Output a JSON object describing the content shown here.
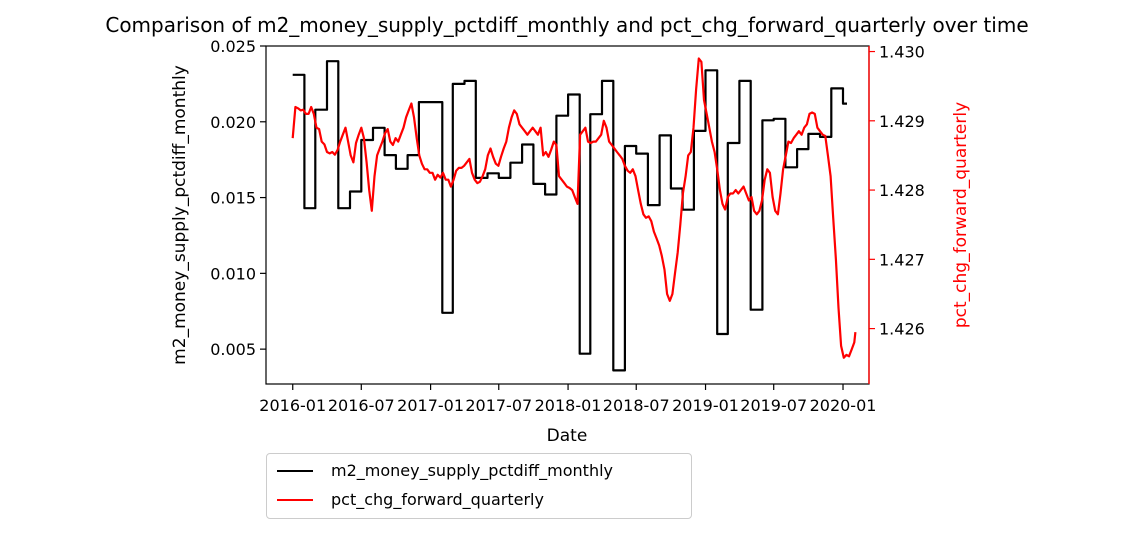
{
  "chart_data": {
    "type": "line",
    "title": "Comparison of m2_money_supply_pctdiff_monthly and pct_chg_forward_quarterly over time",
    "xlabel": "Date",
    "ylabel_left": "m2_money_supply_pctdiff_monthly",
    "ylabel_right": "pct_chg_forward_quarterly",
    "x_ticks": [
      "2016-01",
      "2016-07",
      "2017-01",
      "2017-07",
      "2018-01",
      "2018-07",
      "2019-01",
      "2019-07",
      "2020-01"
    ],
    "x_range": [
      "2015-10-22",
      "2020-03-10"
    ],
    "ylim_left": [
      0.0027,
      0.025
    ],
    "ylim_right": [
      1.4252,
      1.43008
    ],
    "y_ticks_left": [
      "0.005",
      "0.010",
      "0.015",
      "0.020",
      "0.025"
    ],
    "y_ticks_right": [
      "1.426",
      "1.427",
      "1.428",
      "1.429",
      "1.430"
    ],
    "grid": false,
    "legend_position": "below",
    "series": [
      {
        "name": "m2_money_supply_pctdiff_monthly",
        "axis": "left",
        "color": "#000000",
        "style": "step",
        "points": [
          [
            "2016-01-01",
            0.0231
          ],
          [
            "2016-02-01",
            0.0143
          ],
          [
            "2016-03-01",
            0.0208
          ],
          [
            "2016-04-01",
            0.024
          ],
          [
            "2016-05-01",
            0.0143
          ],
          [
            "2016-06-01",
            0.0154
          ],
          [
            "2016-07-01",
            0.0188
          ],
          [
            "2016-08-01",
            0.0196
          ],
          [
            "2016-09-01",
            0.0178
          ],
          [
            "2016-10-01",
            0.0169
          ],
          [
            "2016-11-01",
            0.0178
          ],
          [
            "2016-12-01",
            0.0213
          ],
          [
            "2017-01-01",
            0.0213
          ],
          [
            "2017-02-01",
            0.0074
          ],
          [
            "2017-03-01",
            0.0225
          ],
          [
            "2017-04-01",
            0.0227
          ],
          [
            "2017-05-01",
            0.0163
          ],
          [
            "2017-06-01",
            0.0166
          ],
          [
            "2017-07-01",
            0.0163
          ],
          [
            "2017-08-01",
            0.0173
          ],
          [
            "2017-09-01",
            0.0185
          ],
          [
            "2017-10-01",
            0.0159
          ],
          [
            "2017-11-01",
            0.0152
          ],
          [
            "2017-12-01",
            0.0204
          ],
          [
            "2018-01-01",
            0.0218
          ],
          [
            "2018-02-01",
            0.0047
          ],
          [
            "2018-03-01",
            0.0205
          ],
          [
            "2018-04-01",
            0.0227
          ],
          [
            "2018-05-01",
            0.0036
          ],
          [
            "2018-06-01",
            0.0184
          ],
          [
            "2018-07-01",
            0.0179
          ],
          [
            "2018-08-01",
            0.0145
          ],
          [
            "2018-09-01",
            0.0191
          ],
          [
            "2018-10-01",
            0.0156
          ],
          [
            "2018-11-01",
            0.0142
          ],
          [
            "2018-12-01",
            0.0194
          ],
          [
            "2019-01-01",
            0.0234
          ],
          [
            "2019-02-01",
            0.006
          ],
          [
            "2019-03-01",
            0.0186
          ],
          [
            "2019-04-01",
            0.0227
          ],
          [
            "2019-05-01",
            0.0076
          ],
          [
            "2019-06-01",
            0.0201
          ],
          [
            "2019-07-01",
            0.0202
          ],
          [
            "2019-08-01",
            0.017
          ],
          [
            "2019-09-01",
            0.0182
          ],
          [
            "2019-10-01",
            0.0192
          ],
          [
            "2019-11-01",
            0.019
          ],
          [
            "2019-12-01",
            0.0222
          ],
          [
            "2020-01-01",
            0.0212
          ]
        ]
      },
      {
        "name": "pct_chg_forward_quarterly",
        "axis": "right",
        "color": "#ff0000",
        "style": "line",
        "points": [
          [
            "2016-01-01",
            1.42875
          ],
          [
            "2016-01-08",
            1.4292
          ],
          [
            "2016-01-15",
            1.42918
          ],
          [
            "2016-01-22",
            1.42915
          ],
          [
            "2016-01-29",
            1.42916
          ],
          [
            "2016-02-05",
            1.4291
          ],
          [
            "2016-02-12",
            1.4291
          ],
          [
            "2016-02-19",
            1.4292
          ],
          [
            "2016-02-26",
            1.4291
          ],
          [
            "2016-03-04",
            1.4289
          ],
          [
            "2016-03-11",
            1.42888
          ],
          [
            "2016-03-18",
            1.4287
          ],
          [
            "2016-03-25",
            1.42866
          ],
          [
            "2016-04-01",
            1.42855
          ],
          [
            "2016-04-08",
            1.42853
          ],
          [
            "2016-04-15",
            1.42855
          ],
          [
            "2016-04-22",
            1.42851
          ],
          [
            "2016-04-29",
            1.42858
          ],
          [
            "2016-05-06",
            1.4287
          ],
          [
            "2016-05-13",
            1.4288
          ],
          [
            "2016-05-20",
            1.4289
          ],
          [
            "2016-05-27",
            1.4287
          ],
          [
            "2016-06-03",
            1.4285
          ],
          [
            "2016-06-10",
            1.4284
          ],
          [
            "2016-06-17",
            1.42868
          ],
          [
            "2016-06-24",
            1.4288
          ],
          [
            "2016-07-01",
            1.4289
          ],
          [
            "2016-07-08",
            1.42875
          ],
          [
            "2016-07-15",
            1.4284
          ],
          [
            "2016-07-22",
            1.428
          ],
          [
            "2016-07-29",
            1.4277
          ],
          [
            "2016-08-05",
            1.4282
          ],
          [
            "2016-08-12",
            1.4285
          ],
          [
            "2016-08-19",
            1.4286
          ],
          [
            "2016-08-26",
            1.4287
          ],
          [
            "2016-09-02",
            1.42882
          ],
          [
            "2016-09-09",
            1.42888
          ],
          [
            "2016-09-16",
            1.4287
          ],
          [
            "2016-09-23",
            1.42865
          ],
          [
            "2016-09-30",
            1.42875
          ],
          [
            "2016-10-07",
            1.4287
          ],
          [
            "2016-10-14",
            1.4288
          ],
          [
            "2016-10-21",
            1.4289
          ],
          [
            "2016-10-28",
            1.42905
          ],
          [
            "2016-11-04",
            1.42915
          ],
          [
            "2016-11-11",
            1.42925
          ],
          [
            "2016-11-18",
            1.42905
          ],
          [
            "2016-11-25",
            1.42875
          ],
          [
            "2016-12-02",
            1.4285
          ],
          [
            "2016-12-09",
            1.42838
          ],
          [
            "2016-12-16",
            1.4283
          ],
          [
            "2016-12-23",
            1.4283
          ],
          [
            "2016-12-30",
            1.42825
          ],
          [
            "2017-01-06",
            1.42825
          ],
          [
            "2017-01-13",
            1.42815
          ],
          [
            "2017-01-20",
            1.42822
          ],
          [
            "2017-01-27",
            1.42818
          ],
          [
            "2017-02-03",
            1.42825
          ],
          [
            "2017-02-10",
            1.42815
          ],
          [
            "2017-02-17",
            1.42815
          ],
          [
            "2017-02-24",
            1.42805
          ],
          [
            "2017-03-03",
            1.42815
          ],
          [
            "2017-03-10",
            1.42828
          ],
          [
            "2017-03-17",
            1.42832
          ],
          [
            "2017-03-24",
            1.42832
          ],
          [
            "2017-03-31",
            1.42835
          ],
          [
            "2017-04-07",
            1.4284
          ],
          [
            "2017-04-14",
            1.42845
          ],
          [
            "2017-04-21",
            1.42825
          ],
          [
            "2017-04-28",
            1.42815
          ],
          [
            "2017-05-05",
            1.4281
          ],
          [
            "2017-05-12",
            1.42812
          ],
          [
            "2017-05-19",
            1.4282
          ],
          [
            "2017-05-26",
            1.4283
          ],
          [
            "2017-06-02",
            1.4285
          ],
          [
            "2017-06-09",
            1.4286
          ],
          [
            "2017-06-16",
            1.42848
          ],
          [
            "2017-06-23",
            1.42838
          ],
          [
            "2017-06-30",
            1.42835
          ],
          [
            "2017-07-07",
            1.42848
          ],
          [
            "2017-07-14",
            1.4286
          ],
          [
            "2017-07-21",
            1.4287
          ],
          [
            "2017-07-28",
            1.4289
          ],
          [
            "2017-08-04",
            1.42905
          ],
          [
            "2017-08-11",
            1.42915
          ],
          [
            "2017-08-18",
            1.4291
          ],
          [
            "2017-08-25",
            1.42895
          ],
          [
            "2017-09-01",
            1.4289
          ],
          [
            "2017-09-08",
            1.42885
          ],
          [
            "2017-09-15",
            1.4288
          ],
          [
            "2017-09-22",
            1.42885
          ],
          [
            "2017-09-29",
            1.4289
          ],
          [
            "2017-10-06",
            1.42885
          ],
          [
            "2017-10-13",
            1.4288
          ],
          [
            "2017-10-20",
            1.4289
          ],
          [
            "2017-10-27",
            1.4285
          ],
          [
            "2017-11-03",
            1.42855
          ],
          [
            "2017-11-10",
            1.42848
          ],
          [
            "2017-11-17",
            1.42858
          ],
          [
            "2017-11-24",
            1.4287
          ],
          [
            "2017-12-01",
            1.42865
          ],
          [
            "2017-12-08",
            1.4282
          ],
          [
            "2017-12-15",
            1.42815
          ],
          [
            "2017-12-22",
            1.4281
          ],
          [
            "2017-12-29",
            1.42805
          ],
          [
            "2018-01-05",
            1.42803
          ],
          [
            "2018-01-12",
            1.428
          ],
          [
            "2018-01-19",
            1.4279
          ],
          [
            "2018-01-26",
            1.4278
          ],
          [
            "2018-02-02",
            1.4288
          ],
          [
            "2018-02-09",
            1.42885
          ],
          [
            "2018-02-16",
            1.4289
          ],
          [
            "2018-02-23",
            1.4287
          ],
          [
            "2018-03-02",
            1.42868
          ],
          [
            "2018-03-09",
            1.4287
          ],
          [
            "2018-03-16",
            1.4287
          ],
          [
            "2018-03-23",
            1.42875
          ],
          [
            "2018-03-30",
            1.4288
          ],
          [
            "2018-04-06",
            1.429
          ],
          [
            "2018-04-13",
            1.4289
          ],
          [
            "2018-04-20",
            1.4287
          ],
          [
            "2018-04-27",
            1.42865
          ],
          [
            "2018-05-04",
            1.4286
          ],
          [
            "2018-05-11",
            1.42855
          ],
          [
            "2018-05-18",
            1.4285
          ],
          [
            "2018-05-25",
            1.42845
          ],
          [
            "2018-06-01",
            1.42835
          ],
          [
            "2018-06-08",
            1.42828
          ],
          [
            "2018-06-15",
            1.42825
          ],
          [
            "2018-06-22",
            1.4283
          ],
          [
            "2018-06-29",
            1.4282
          ],
          [
            "2018-07-06",
            1.428
          ],
          [
            "2018-07-13",
            1.4278
          ],
          [
            "2018-07-20",
            1.42765
          ],
          [
            "2018-07-27",
            1.4276
          ],
          [
            "2018-08-03",
            1.42762
          ],
          [
            "2018-08-10",
            1.42755
          ],
          [
            "2018-08-17",
            1.4274
          ],
          [
            "2018-08-24",
            1.4273
          ],
          [
            "2018-08-31",
            1.4272
          ],
          [
            "2018-09-07",
            1.42705
          ],
          [
            "2018-09-14",
            1.42685
          ],
          [
            "2018-09-21",
            1.4265
          ],
          [
            "2018-09-28",
            1.4264
          ],
          [
            "2018-10-05",
            1.4265
          ],
          [
            "2018-10-12",
            1.4268
          ],
          [
            "2018-10-19",
            1.4271
          ],
          [
            "2018-10-26",
            1.4275
          ],
          [
            "2018-11-02",
            1.42795
          ],
          [
            "2018-11-09",
            1.4282
          ],
          [
            "2018-11-16",
            1.4285
          ],
          [
            "2018-11-23",
            1.42855
          ],
          [
            "2018-11-30",
            1.4289
          ],
          [
            "2018-12-07",
            1.42945
          ],
          [
            "2018-12-14",
            1.4299
          ],
          [
            "2018-12-21",
            1.42985
          ],
          [
            "2018-12-28",
            1.4293
          ],
          [
            "2019-01-04",
            1.4291
          ],
          [
            "2019-01-11",
            1.4289
          ],
          [
            "2019-01-18",
            1.4287
          ],
          [
            "2019-01-25",
            1.42855
          ],
          [
            "2019-02-01",
            1.4283
          ],
          [
            "2019-02-08",
            1.428
          ],
          [
            "2019-02-15",
            1.4278
          ],
          [
            "2019-02-22",
            1.42772
          ],
          [
            "2019-03-01",
            1.4279
          ],
          [
            "2019-03-08",
            1.42795
          ],
          [
            "2019-03-15",
            1.42795
          ],
          [
            "2019-03-22",
            1.428
          ],
          [
            "2019-03-29",
            1.42795
          ],
          [
            "2019-04-05",
            1.428
          ],
          [
            "2019-04-12",
            1.42805
          ],
          [
            "2019-04-19",
            1.42795
          ],
          [
            "2019-04-26",
            1.42785
          ],
          [
            "2019-05-03",
            1.4279
          ],
          [
            "2019-05-10",
            1.4277
          ],
          [
            "2019-05-17",
            1.42765
          ],
          [
            "2019-05-24",
            1.4277
          ],
          [
            "2019-05-31",
            1.42785
          ],
          [
            "2019-06-07",
            1.42815
          ],
          [
            "2019-06-14",
            1.4283
          ],
          [
            "2019-06-21",
            1.42825
          ],
          [
            "2019-06-28",
            1.4279
          ],
          [
            "2019-07-05",
            1.4277
          ],
          [
            "2019-07-12",
            1.42765
          ],
          [
            "2019-07-19",
            1.42795
          ],
          [
            "2019-07-26",
            1.4283
          ],
          [
            "2019-08-02",
            1.4285
          ],
          [
            "2019-08-09",
            1.4287
          ],
          [
            "2019-08-16",
            1.42868
          ],
          [
            "2019-08-23",
            1.42875
          ],
          [
            "2019-08-30",
            1.4288
          ],
          [
            "2019-09-06",
            1.42885
          ],
          [
            "2019-09-13",
            1.4288
          ],
          [
            "2019-09-20",
            1.4289
          ],
          [
            "2019-09-27",
            1.42895
          ],
          [
            "2019-10-04",
            1.4291
          ],
          [
            "2019-10-11",
            1.42912
          ],
          [
            "2019-10-18",
            1.4291
          ],
          [
            "2019-10-25",
            1.4289
          ],
          [
            "2019-11-01",
            1.42885
          ],
          [
            "2019-11-08",
            1.4288
          ],
          [
            "2019-11-15",
            1.42878
          ],
          [
            "2019-11-22",
            1.4285
          ],
          [
            "2019-11-29",
            1.4282
          ],
          [
            "2019-12-06",
            1.4276
          ],
          [
            "2019-12-13",
            1.427
          ],
          [
            "2019-12-20",
            1.4263
          ],
          [
            "2019-12-27",
            1.42575
          ],
          [
            "2020-01-03",
            1.42558
          ],
          [
            "2020-01-10",
            1.42562
          ],
          [
            "2020-01-17",
            1.4256
          ],
          [
            "2020-01-24",
            1.4257
          ],
          [
            "2020-01-31",
            1.4258
          ],
          [
            "2020-02-03",
            1.42595
          ]
        ]
      }
    ]
  }
}
